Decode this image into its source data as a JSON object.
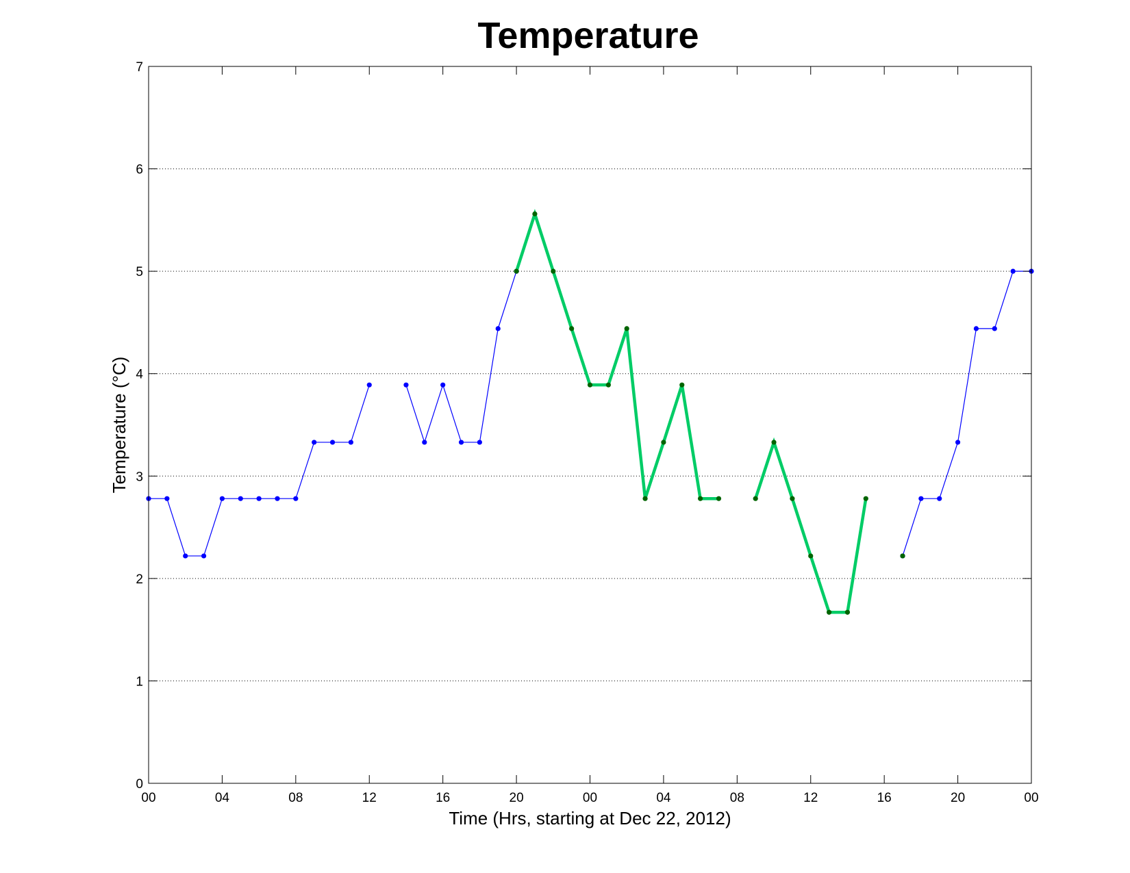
{
  "chart_data": {
    "type": "line",
    "title": "Temperature",
    "xlabel": "Time (Hrs, starting at Dec 22, 2012)",
    "ylabel": "Temperature (°C)",
    "xlim": [
      0,
      48
    ],
    "ylim": [
      0,
      7
    ],
    "x_ticks": [
      0,
      4,
      8,
      12,
      16,
      20,
      24,
      28,
      32,
      36,
      40,
      44,
      48
    ],
    "x_tick_labels": [
      "00",
      "04",
      "08",
      "12",
      "16",
      "20",
      "00",
      "04",
      "08",
      "12",
      "16",
      "20",
      "00"
    ],
    "y_ticks": [
      0,
      1,
      2,
      3,
      4,
      5,
      6,
      7
    ],
    "y_tick_labels": [
      "0",
      "1",
      "2",
      "3",
      "4",
      "5",
      "6",
      "7"
    ],
    "grid": "horizontal-dotted",
    "series": [
      {
        "style": "thin",
        "color": "#0000ff",
        "marker_color": "#0000ff",
        "points": [
          [
            0,
            2.78
          ],
          [
            1,
            2.78
          ],
          [
            2,
            2.22
          ],
          [
            3,
            2.22
          ],
          [
            4,
            2.78
          ],
          [
            5,
            2.78
          ],
          [
            6,
            2.78
          ],
          [
            7,
            2.78
          ],
          [
            8,
            2.78
          ],
          [
            9,
            3.33
          ],
          [
            10,
            3.33
          ],
          [
            11,
            3.33
          ],
          [
            12,
            3.89
          ],
          [
            13,
            null
          ],
          [
            14,
            3.89
          ],
          [
            15,
            3.33
          ],
          [
            16,
            3.89
          ],
          [
            17,
            3.33
          ],
          [
            18,
            3.33
          ],
          [
            19,
            4.44
          ],
          [
            20,
            5.0
          ],
          [
            21,
            null
          ],
          [
            22,
            null
          ],
          [
            23,
            null
          ],
          [
            24,
            null
          ],
          [
            25,
            null
          ],
          [
            26,
            null
          ],
          [
            27,
            null
          ],
          [
            28,
            null
          ],
          [
            29,
            null
          ],
          [
            30,
            null
          ],
          [
            31,
            null
          ],
          [
            32,
            null
          ],
          [
            33,
            null
          ],
          [
            34,
            null
          ],
          [
            35,
            null
          ],
          [
            36,
            null
          ],
          [
            37,
            null
          ],
          [
            38,
            null
          ],
          [
            39,
            null
          ],
          [
            40,
            null
          ],
          [
            41,
            2.22
          ],
          [
            42,
            2.78
          ],
          [
            43,
            2.78
          ],
          [
            44,
            3.33
          ],
          [
            45,
            4.44
          ],
          [
            46,
            4.44
          ],
          [
            47,
            5.0
          ],
          [
            48,
            5.0
          ]
        ]
      },
      {
        "style": "thick",
        "color": "#00cc66",
        "marker_color": "#006400",
        "points": [
          [
            20,
            5.0
          ],
          [
            21,
            5.56
          ],
          [
            22,
            5.0
          ],
          [
            23,
            4.44
          ],
          [
            24,
            3.89
          ],
          [
            25,
            3.89
          ],
          [
            26,
            4.44
          ],
          [
            27,
            2.78
          ],
          [
            28,
            3.33
          ],
          [
            29,
            3.89
          ],
          [
            30,
            2.78
          ],
          [
            31,
            2.78
          ],
          [
            32,
            null
          ],
          [
            33,
            2.78
          ],
          [
            34,
            3.33
          ],
          [
            35,
            2.78
          ],
          [
            36,
            2.22
          ],
          [
            37,
            1.67
          ],
          [
            38,
            1.67
          ],
          [
            39,
            2.78
          ],
          [
            40,
            null
          ],
          [
            41,
            2.22
          ]
        ]
      }
    ]
  }
}
